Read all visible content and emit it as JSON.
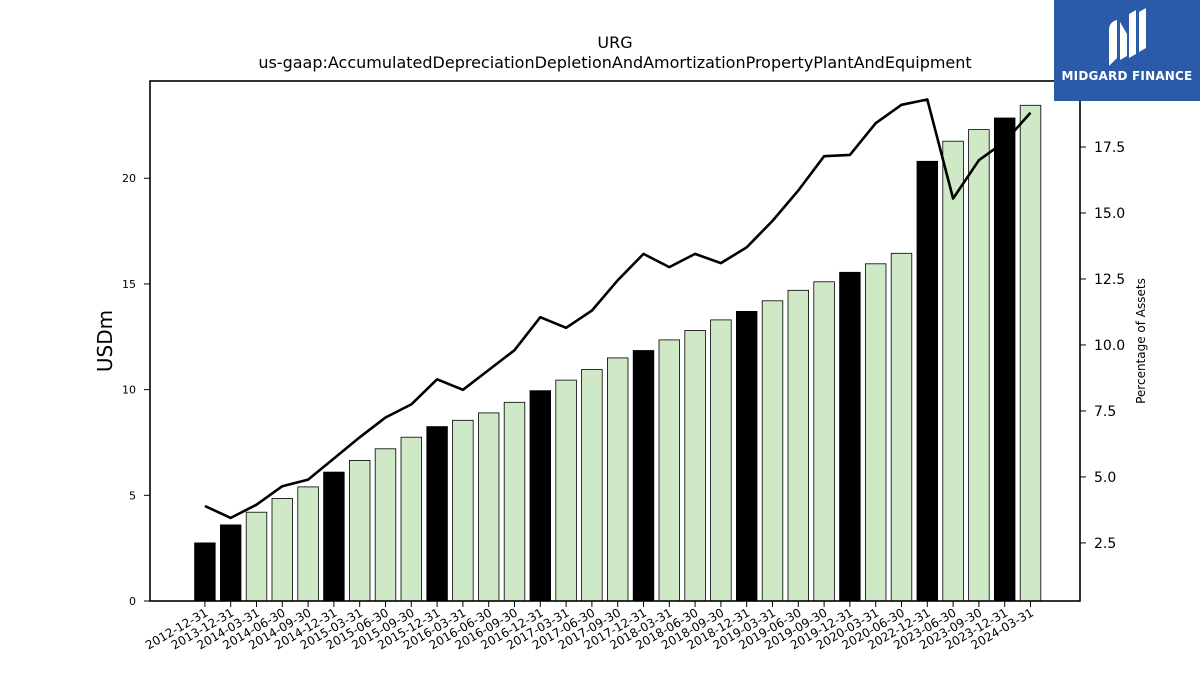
{
  "chart_data": {
    "type": "bar",
    "title": "URG",
    "subtitle": "us-gaap:AccumulatedDepreciationDepletionAndAmortizationPropertyPlantAndEquipment",
    "ylabel": "USDm",
    "y2label": "Percentage of Assets",
    "ylim": [
      0,
      24.6
    ],
    "y2lim": [
      0.3,
      20.0
    ],
    "yticks": [
      "0",
      "5",
      "10",
      "15",
      "20"
    ],
    "y2ticks": [
      "2.5",
      "5.0",
      "7.5",
      "10.0",
      "12.5",
      "15.0",
      "17.5"
    ],
    "grid": false,
    "categories": [
      "2012-12-31",
      "2013-12-31",
      "2014-03-31",
      "2014-06-30",
      "2014-09-30",
      "2014-12-31",
      "2015-03-31",
      "2015-06-30",
      "2015-09-30",
      "2015-12-31",
      "2016-03-31",
      "2016-06-30",
      "2016-09-30",
      "2016-12-31",
      "2017-03-31",
      "2017-06-30",
      "2017-09-30",
      "2017-12-31",
      "2018-03-31",
      "2018-06-30",
      "2018-09-30",
      "2018-12-31",
      "2019-03-31",
      "2019-06-30",
      "2019-09-30",
      "2019-12-31",
      "2020-03-31",
      "2020-06-30",
      "2022-12-31",
      "2023-06-30",
      "2023-09-30",
      "2023-12-31",
      "2024-03-31"
    ],
    "series": [
      {
        "kind": "bar",
        "values": [
          2.75,
          3.6,
          4.2,
          4.85,
          5.4,
          6.1,
          6.65,
          7.2,
          7.75,
          8.25,
          8.55,
          8.9,
          9.4,
          9.95,
          10.45,
          10.95,
          11.5,
          11.85,
          12.35,
          12.8,
          13.3,
          13.7,
          14.2,
          14.7,
          15.1,
          15.55,
          15.95,
          16.45,
          20.8,
          21.75,
          22.3,
          22.85,
          23.45
        ],
        "highlight": [
          true,
          true,
          false,
          false,
          false,
          true,
          false,
          false,
          false,
          true,
          false,
          false,
          false,
          true,
          false,
          false,
          false,
          true,
          false,
          false,
          false,
          true,
          false,
          false,
          false,
          true,
          false,
          false,
          true,
          false,
          false,
          true,
          false
        ]
      },
      {
        "kind": "line",
        "axis": "right",
        "values": [
          3.9,
          3.45,
          3.95,
          4.65,
          4.9,
          5.7,
          6.5,
          7.25,
          7.75,
          8.7,
          8.3,
          9.05,
          9.8,
          11.05,
          10.65,
          11.3,
          12.45,
          13.45,
          12.95,
          13.45,
          13.1,
          13.7,
          14.7,
          15.85,
          17.15,
          17.2,
          18.4,
          19.1,
          19.3,
          15.55,
          17.0,
          17.7,
          18.8
        ]
      }
    ],
    "colors": {
      "bar_highlight": "#000000",
      "bar_normal": "#cfe8c6",
      "bar_edge": "#000000",
      "line": "#000000"
    }
  },
  "logo": {
    "text": "MIDGARD FINANCE",
    "background": "#2b5aa8"
  }
}
